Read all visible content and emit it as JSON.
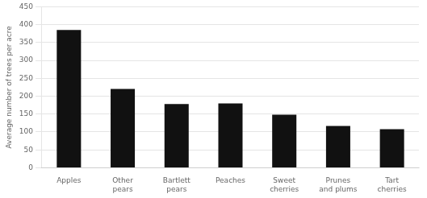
{
  "chart_data": {
    "type": "bar",
    "categories": [
      "Apples",
      "Other\npears",
      "Bartlett\npears",
      "Peaches",
      "Sweet\ncherries",
      "Prunes\nand plums",
      "Tart\ncherries"
    ],
    "values": [
      385,
      220,
      178,
      180,
      148,
      117,
      108
    ],
    "color": "#111111",
    "ylabel": "Average number of trees per acre",
    "ylim": [
      0,
      450
    ],
    "yticks": [
      0,
      50,
      100,
      150,
      200,
      250,
      300,
      350,
      400,
      450
    ],
    "grid": true
  }
}
